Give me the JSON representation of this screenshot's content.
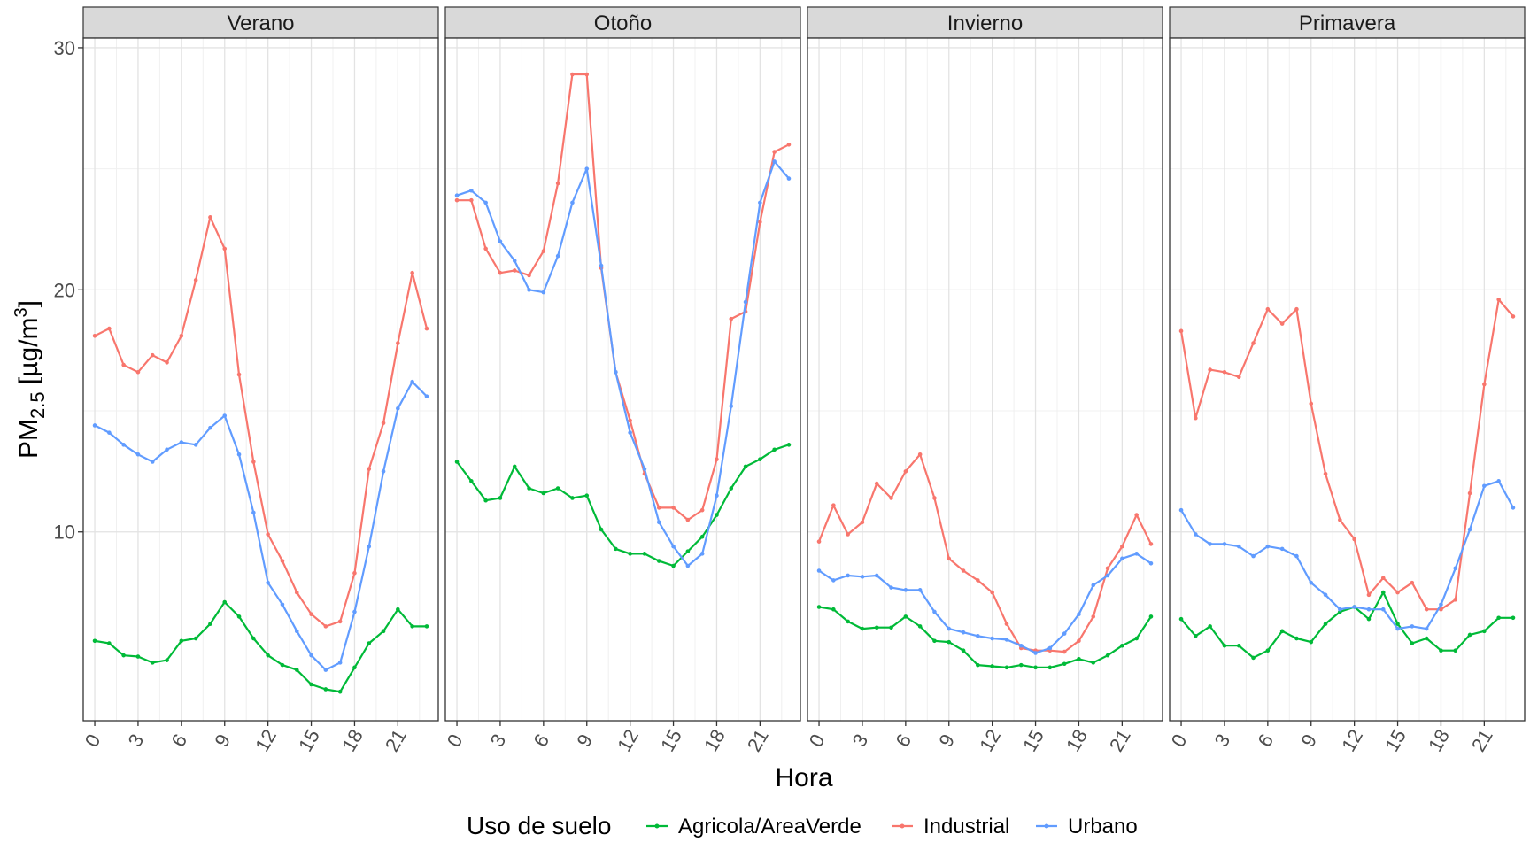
{
  "chart_data": {
    "type": "line",
    "xlabel": "Hora",
    "ylabel": {
      "main": "PM",
      "sub": "2.5",
      "unit": " [µg/m",
      "sup": "3",
      "close": "]"
    },
    "ylim": [
      2.2,
      30.4
    ],
    "xlim": [
      -0.8,
      23.8
    ],
    "y_ticks": [
      10,
      20,
      30
    ],
    "x_ticks": [
      0,
      3,
      6,
      9,
      12,
      15,
      18,
      21
    ],
    "grid": true,
    "legend": {
      "title": "Uso de suelo",
      "position": "bottom"
    },
    "series_names": [
      "Agricola/AreaVerde",
      "Industrial",
      "Urbano"
    ],
    "colors": {
      "Agricola/AreaVerde": "#00BA38",
      "Industrial": "#F8766D",
      "Urbano": "#619CFF"
    },
    "hours": [
      0,
      1,
      2,
      3,
      4,
      5,
      6,
      7,
      8,
      9,
      10,
      11,
      12,
      13,
      14,
      15,
      16,
      17,
      18,
      19,
      20,
      21,
      22,
      23
    ],
    "panels": [
      {
        "title": "Verano",
        "series": [
          {
            "name": "Agricola/AreaVerde",
            "values": [
              5.5,
              5.4,
              4.9,
              4.85,
              4.6,
              4.7,
              5.5,
              5.6,
              6.2,
              7.1,
              6.5,
              5.6,
              4.9,
              4.5,
              4.3,
              3.7,
              3.5,
              3.4,
              4.4,
              5.4,
              5.9,
              6.8,
              6.1,
              6.1
            ]
          },
          {
            "name": "Industrial",
            "values": [
              18.1,
              18.4,
              16.9,
              16.6,
              17.3,
              17.0,
              18.1,
              20.4,
              23.0,
              21.7,
              16.5,
              12.9,
              9.9,
              8.8,
              7.5,
              6.6,
              6.1,
              6.3,
              8.3,
              12.6,
              14.5,
              17.8,
              20.7,
              18.4
            ]
          },
          {
            "name": "Urbano",
            "values": [
              14.4,
              14.1,
              13.6,
              13.2,
              12.9,
              13.4,
              13.7,
              13.6,
              14.3,
              14.8,
              13.2,
              10.8,
              7.9,
              7.0,
              5.9,
              4.9,
              4.3,
              4.6,
              6.7,
              9.4,
              12.5,
              15.1,
              16.2,
              15.6
            ]
          }
        ]
      },
      {
        "title": "Otoño",
        "series": [
          {
            "name": "Agricola/AreaVerde",
            "values": [
              12.9,
              12.1,
              11.3,
              11.4,
              12.7,
              11.8,
              11.6,
              11.8,
              11.4,
              11.5,
              10.1,
              9.3,
              9.1,
              9.1,
              8.8,
              8.6,
              9.2,
              9.8,
              10.7,
              11.8,
              12.7,
              13.0,
              13.4,
              13.6
            ]
          },
          {
            "name": "Industrial",
            "values": [
              23.7,
              23.7,
              21.7,
              20.7,
              20.8,
              20.6,
              21.6,
              24.4,
              28.9,
              28.9,
              20.9,
              16.6,
              14.6,
              12.4,
              11.0,
              11.0,
              10.5,
              10.9,
              13.0,
              18.8,
              19.1,
              22.8,
              25.7,
              26.0
            ]
          },
          {
            "name": "Urbano",
            "values": [
              23.9,
              24.1,
              23.6,
              22.0,
              21.2,
              20.0,
              19.9,
              21.4,
              23.6,
              25.0,
              21.0,
              16.6,
              14.1,
              12.6,
              10.4,
              9.4,
              8.6,
              9.1,
              11.5,
              15.2,
              19.5,
              23.6,
              25.3,
              24.6
            ]
          }
        ]
      },
      {
        "title": "Invierno",
        "series": [
          {
            "name": "Agricola/AreaVerde",
            "values": [
              6.9,
              6.8,
              6.3,
              6.0,
              6.05,
              6.05,
              6.5,
              6.1,
              5.5,
              5.45,
              5.1,
              4.5,
              4.45,
              4.4,
              4.5,
              4.4,
              4.4,
              4.55,
              4.75,
              4.6,
              4.9,
              5.3,
              5.6,
              6.5
            ]
          },
          {
            "name": "Industrial",
            "values": [
              9.6,
              11.1,
              9.9,
              10.4,
              12.0,
              11.4,
              12.5,
              13.2,
              11.4,
              8.9,
              8.4,
              8.0,
              7.5,
              6.2,
              5.2,
              5.1,
              5.1,
              5.05,
              5.5,
              6.5,
              8.5,
              9.4,
              10.7,
              9.5
            ]
          },
          {
            "name": "Urbano",
            "values": [
              8.4,
              8.0,
              8.2,
              8.15,
              8.2,
              7.7,
              7.6,
              7.6,
              6.7,
              6.0,
              5.85,
              5.7,
              5.6,
              5.55,
              5.3,
              5.0,
              5.2,
              5.8,
              6.6,
              7.8,
              8.2,
              8.9,
              9.1,
              8.7
            ]
          }
        ]
      },
      {
        "title": "Primavera",
        "series": [
          {
            "name": "Agricola/AreaVerde",
            "values": [
              6.4,
              5.7,
              6.1,
              5.3,
              5.3,
              4.8,
              5.1,
              5.9,
              5.6,
              5.45,
              6.2,
              6.7,
              6.9,
              6.4,
              7.5,
              6.2,
              5.4,
              5.6,
              5.1,
              5.1,
              5.75,
              5.9,
              6.45,
              6.45
            ]
          },
          {
            "name": "Industrial",
            "values": [
              18.3,
              14.7,
              16.7,
              16.6,
              16.4,
              17.8,
              19.2,
              18.6,
              19.2,
              15.3,
              12.4,
              10.5,
              9.7,
              7.4,
              8.1,
              7.5,
              7.9,
              6.8,
              6.8,
              7.2,
              11.6,
              16.1,
              19.6,
              18.9
            ]
          },
          {
            "name": "Urbano",
            "values": [
              10.9,
              9.9,
              9.5,
              9.5,
              9.4,
              9.0,
              9.4,
              9.3,
              9.0,
              7.9,
              7.4,
              6.8,
              6.9,
              6.8,
              6.8,
              6.0,
              6.1,
              6.0,
              7.0,
              8.5,
              10.1,
              11.9,
              12.1,
              11.0
            ]
          }
        ]
      }
    ]
  }
}
